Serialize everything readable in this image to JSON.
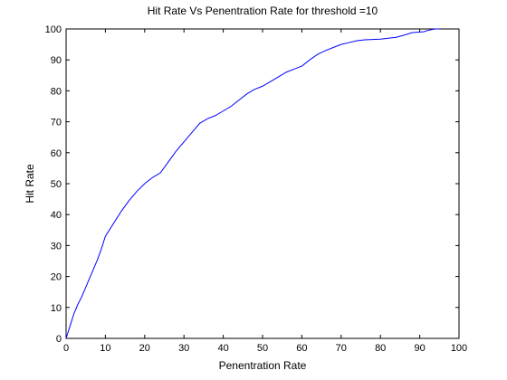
{
  "chart_data": {
    "type": "line",
    "title": "Hit Rate Vs Penentration Rate for threshold =10",
    "xlabel": "Penentration Rate",
    "ylabel": "Hit Rate",
    "xlim": [
      0,
      100
    ],
    "ylim": [
      0,
      100
    ],
    "xticks": [
      0,
      10,
      20,
      30,
      40,
      50,
      60,
      70,
      80,
      90,
      100
    ],
    "yticks": [
      0,
      10,
      20,
      30,
      40,
      50,
      60,
      70,
      80,
      90,
      100
    ],
    "grid": false,
    "colors": {
      "line": "#0000ff",
      "axes": "#000000",
      "background": "#ffffff"
    },
    "series": [
      {
        "x": [
          0,
          1,
          2,
          3,
          4,
          5,
          6,
          7,
          8,
          9,
          10,
          11,
          12,
          14,
          16,
          18,
          20,
          22,
          24,
          26,
          28,
          30,
          32,
          34,
          36,
          38,
          40,
          42,
          44,
          46,
          48,
          50,
          52,
          54,
          56,
          58,
          60,
          62,
          64,
          66,
          68,
          70,
          72,
          74,
          76,
          78,
          80,
          82,
          84,
          86,
          88,
          90,
          91,
          92,
          93,
          94,
          95
        ],
        "y": [
          0,
          4,
          8,
          11,
          13.5,
          16.5,
          19.5,
          22.5,
          25.5,
          29,
          33,
          35,
          37,
          41,
          44.5,
          47.5,
          50,
          52,
          53.5,
          57,
          60.5,
          63.5,
          66.5,
          69.5,
          71,
          72,
          73.5,
          75,
          77,
          79,
          80.5,
          81.5,
          83,
          84.5,
          86,
          87,
          88,
          90,
          91.8,
          93,
          94,
          95,
          95.6,
          96.2,
          96.5,
          96.6,
          96.7,
          97,
          97.3,
          98,
          98.8,
          99,
          99.1,
          99.5,
          99.8,
          100,
          100
        ]
      }
    ]
  }
}
